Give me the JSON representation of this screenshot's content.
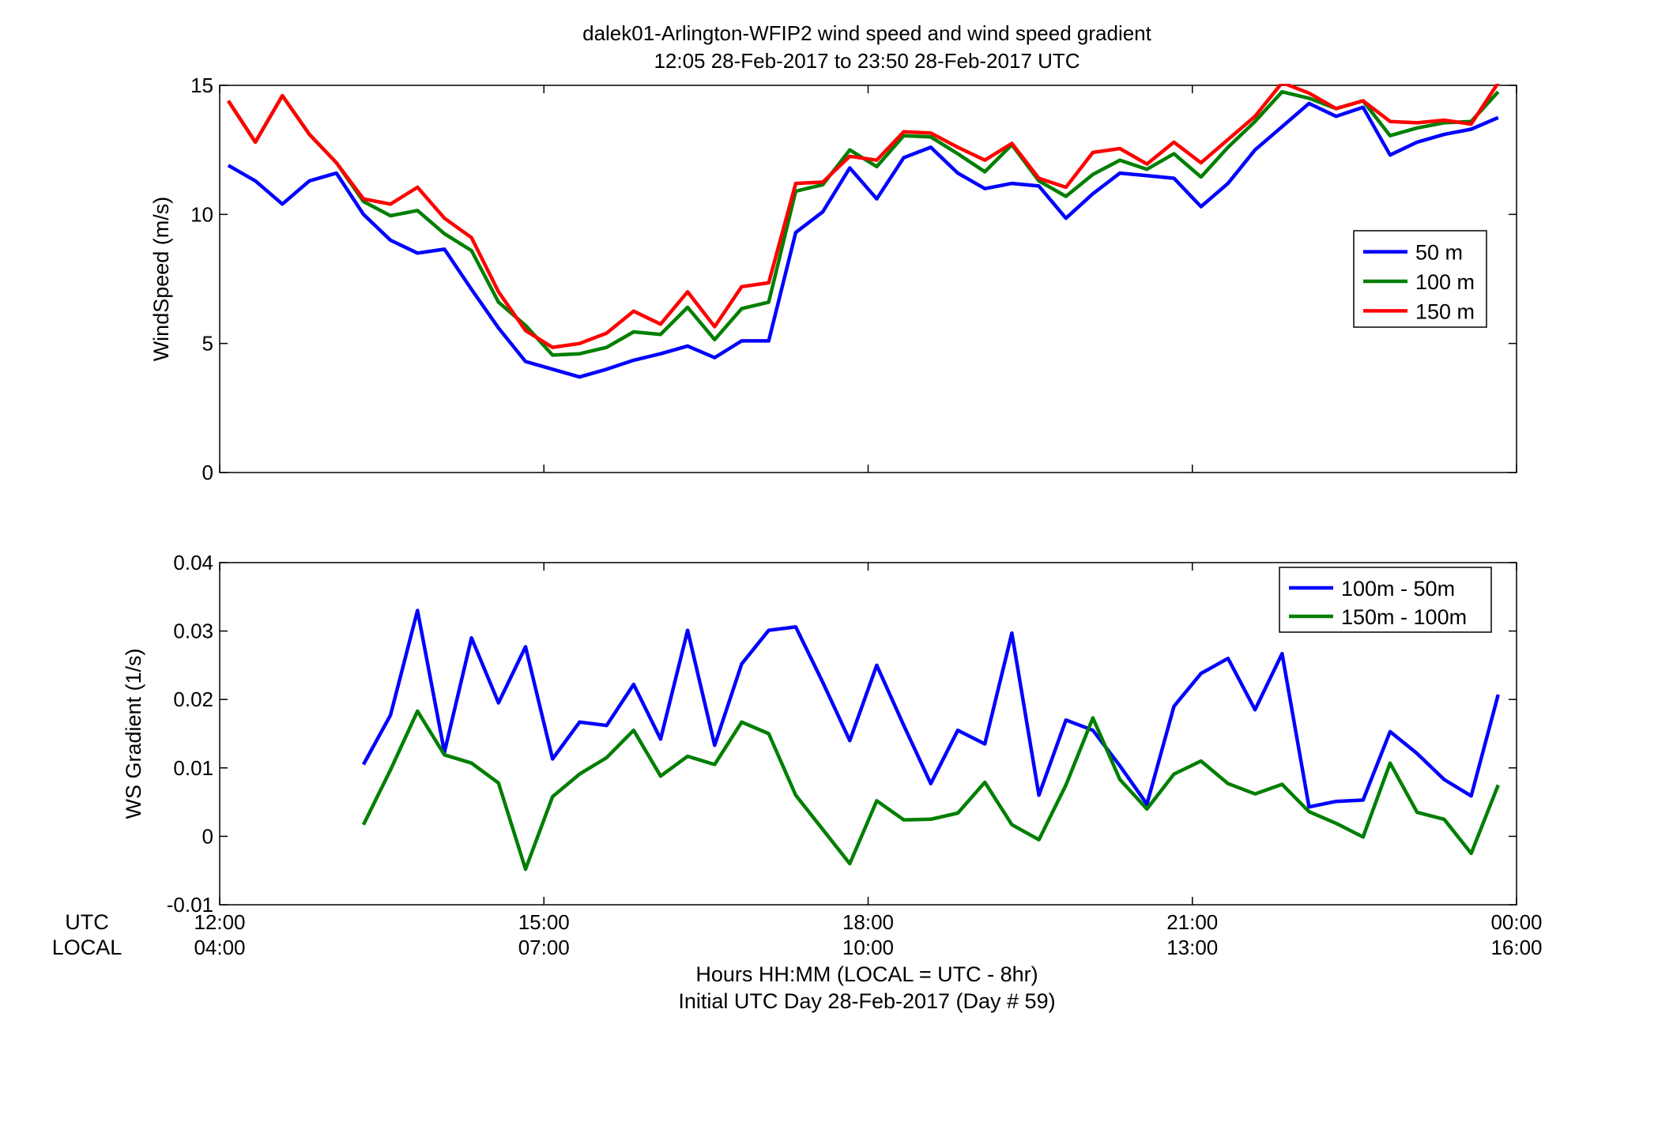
{
  "title_line1": "dalek01-Arlington-WFIP2  wind speed and wind speed gradient",
  "title_line2": "12:05 28-Feb-2017 to 23:50 28-Feb-2017  UTC",
  "row_labels": {
    "utc": "UTC",
    "local": "LOCAL"
  },
  "x_ticks_utc": [
    "12:00",
    "15:00",
    "18:00",
    "21:00",
    "00:00"
  ],
  "x_ticks_local": [
    "04:00",
    "07:00",
    "10:00",
    "13:00",
    "16:00"
  ],
  "footer_line1": "Hours HH:MM  (LOCAL = UTC - 8hr)",
  "footer_line2": "Initial UTC Day 28-Feb-2017 (Day # 59)",
  "chart_data": [
    {
      "type": "line",
      "ylabel": "WindSpeed (m/s)",
      "xlabel": "Hours HH:MM  (LOCAL = UTC - 8hr)",
      "xlim": [
        12,
        24
      ],
      "ylim": [
        0,
        15
      ],
      "yticks": [
        0,
        5,
        10,
        15
      ],
      "ytick_labels": [
        "0",
        "5",
        "10",
        "15"
      ],
      "grid": false,
      "legend_position": "right",
      "x": [
        12.08,
        12.33,
        12.58,
        12.83,
        13.08,
        13.33,
        13.58,
        13.83,
        14.08,
        14.33,
        14.58,
        14.83,
        15.08,
        15.33,
        15.58,
        15.83,
        16.08,
        16.33,
        16.58,
        16.83,
        17.08,
        17.33,
        17.58,
        17.83,
        18.08,
        18.33,
        18.58,
        18.83,
        19.08,
        19.33,
        19.58,
        19.83,
        20.08,
        20.33,
        20.58,
        20.83,
        21.08,
        21.33,
        21.58,
        21.83,
        22.08,
        22.33,
        22.58,
        22.83,
        23.08,
        23.33,
        23.58,
        23.83
      ],
      "series": [
        {
          "name": "50 m",
          "color": "#0000ff",
          "values": [
            11.9,
            11.3,
            10.4,
            11.3,
            11.6,
            10.0,
            9.0,
            8.5,
            8.65,
            7.1,
            5.6,
            4.3,
            4.0,
            3.7,
            4.0,
            4.35,
            4.6,
            4.9,
            4.45,
            5.1,
            5.1,
            9.3,
            10.1,
            11.8,
            10.6,
            12.2,
            12.6,
            11.6,
            11.0,
            11.2,
            11.1,
            9.85,
            10.8,
            11.6,
            11.5,
            11.4,
            10.3,
            11.2,
            12.5,
            13.4,
            14.3,
            13.8,
            14.15,
            12.3,
            12.8,
            13.1,
            13.3,
            13.75
          ]
        },
        {
          "name": "100 m",
          "color": "#007f00",
          "values": [
            14.4,
            12.8,
            14.6,
            13.1,
            12.0,
            10.5,
            9.95,
            10.15,
            9.25,
            8.6,
            6.6,
            5.7,
            4.55,
            4.6,
            4.85,
            5.45,
            5.35,
            6.4,
            5.15,
            6.35,
            6.6,
            10.9,
            11.15,
            12.5,
            11.85,
            13.05,
            13.0,
            12.35,
            11.65,
            12.7,
            11.3,
            10.7,
            11.55,
            12.1,
            11.75,
            12.35,
            11.45,
            12.6,
            13.6,
            14.75,
            14.5,
            14.1,
            14.4,
            13.05,
            13.35,
            13.55,
            13.6,
            14.75
          ]
        },
        {
          "name": "150 m",
          "color": "#ff0000",
          "values": [
            14.4,
            12.8,
            14.6,
            13.1,
            12.0,
            10.6,
            10.4,
            11.05,
            9.85,
            9.1,
            7.0,
            5.5,
            4.85,
            5.0,
            5.4,
            6.25,
            5.75,
            7.0,
            5.65,
            7.2,
            7.35,
            11.2,
            11.25,
            12.25,
            12.1,
            13.2,
            13.15,
            12.6,
            12.1,
            12.75,
            11.4,
            11.05,
            12.4,
            12.55,
            11.95,
            12.8,
            12.0,
            12.9,
            13.8,
            15.1,
            14.7,
            14.1,
            14.4,
            13.6,
            13.55,
            13.65,
            13.5,
            15.1
          ]
        }
      ],
      "legend": [
        "50 m",
        "100 m",
        "150 m"
      ]
    },
    {
      "type": "line",
      "ylabel": "WS Gradient (1/s)",
      "xlabel": "Hours HH:MM  (LOCAL = UTC - 8hr)",
      "xlim": [
        12,
        24
      ],
      "ylim": [
        -0.01,
        0.04
      ],
      "yticks": [
        -0.01,
        0,
        0.01,
        0.02,
        0.03,
        0.04
      ],
      "ytick_labels": [
        "-0.01",
        "0",
        "0.01",
        "0.02",
        "0.03",
        "0.04"
      ],
      "grid": false,
      "legend_position": "top-right",
      "x": [
        13.33,
        13.58,
        13.83,
        14.08,
        14.33,
        14.58,
        14.83,
        15.08,
        15.33,
        15.58,
        15.83,
        16.08,
        16.33,
        16.58,
        16.83,
        17.08,
        17.33,
        17.58,
        17.83,
        18.08,
        18.33,
        18.58,
        18.83,
        19.08,
        19.33,
        19.58,
        19.83,
        20.08,
        20.33,
        20.58,
        20.83,
        21.08,
        21.33,
        21.58,
        21.83,
        22.08,
        22.33,
        22.58,
        22.83,
        23.08,
        23.33,
        23.58,
        23.83
      ],
      "series": [
        {
          "name": "100m - 50m",
          "color": "#0000ff",
          "values": [
            0.0105,
            0.0177,
            0.033,
            0.0123,
            0.029,
            0.0195,
            0.0277,
            0.0113,
            0.0167,
            0.0162,
            0.0222,
            0.0142,
            0.0301,
            0.0133,
            0.0252,
            0.0301,
            0.0306,
            0.0225,
            0.014,
            0.025,
            0.0162,
            0.0077,
            0.0155,
            0.0135,
            0.0297,
            0.006,
            0.017,
            0.0155,
            0.0103,
            0.0047,
            0.019,
            0.0238,
            0.026,
            0.0185,
            0.0267,
            0.0043,
            0.0051,
            0.0053,
            0.0153,
            0.0121,
            0.0083,
            0.0059,
            0.0207
          ]
        },
        {
          "name": "150m - 100m",
          "color": "#007f00",
          "values": [
            0.0017,
            0.0097,
            0.0183,
            0.0119,
            0.0107,
            0.0078,
            -0.0048,
            0.0058,
            0.0091,
            0.0115,
            0.0155,
            0.0088,
            0.0117,
            0.0105,
            0.0167,
            0.015,
            0.006,
            0.001,
            -0.004,
            0.0052,
            0.0024,
            0.0025,
            0.0034,
            0.0079,
            0.0017,
            -0.0005,
            0.0075,
            0.0173,
            0.0083,
            0.004,
            0.0091,
            0.011,
            0.0077,
            0.0062,
            0.0076,
            0.0036,
            0.0019,
            -0.0001,
            0.0107,
            0.0035,
            0.0025,
            -0.0025,
            0.0075
          ]
        }
      ],
      "legend": [
        "100m - 50m",
        "150m - 100m"
      ]
    }
  ]
}
